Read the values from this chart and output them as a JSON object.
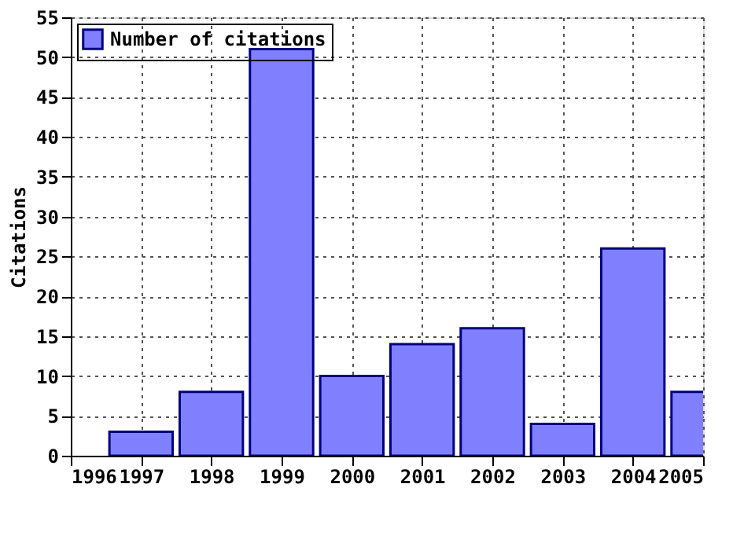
{
  "chart_data": {
    "type": "bar",
    "ylabel": "Citations",
    "x": [
      1997,
      1998,
      1999,
      2000,
      2001,
      2002,
      2003,
      2004,
      2005
    ],
    "series": [
      {
        "name": "Number of citations",
        "color": "#8080ff",
        "values": [
          3,
          8,
          51,
          10,
          14,
          16,
          4,
          26,
          8
        ]
      }
    ],
    "xlim": [
      1996,
      2005
    ],
    "xticks": [
      1996,
      1997,
      1998,
      1999,
      2000,
      2001,
      2002,
      2003,
      2004,
      2005
    ],
    "ylim": [
      0,
      55
    ],
    "yticks": [
      0,
      5,
      10,
      15,
      20,
      25,
      30,
      35,
      40,
      45,
      50,
      55
    ],
    "grid": true,
    "legend": "top left"
  }
}
